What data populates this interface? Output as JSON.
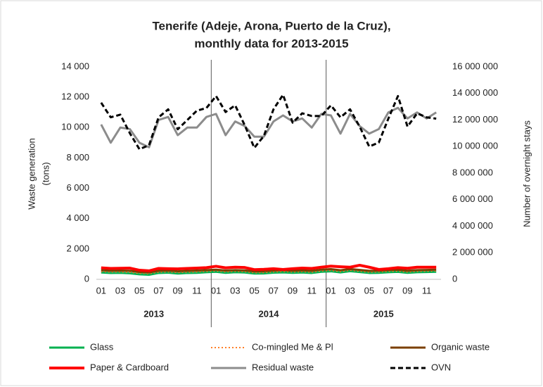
{
  "chart_data": {
    "type": "line",
    "title": [
      "Tenerife (Adeje, Arona, Puerto de la Cruz),",
      "monthly data for 2013-2015"
    ],
    "y_label": [
      "Waste generation",
      "(tons)"
    ],
    "y2_label": "Number of overnight stays",
    "categories": [
      "01",
      null,
      "03",
      null,
      "05",
      null,
      "07",
      null,
      "09",
      null,
      "11",
      null,
      "01",
      null,
      "03",
      null,
      "05",
      null,
      "07",
      null,
      "09",
      null,
      "11",
      null,
      "01",
      null,
      "03",
      null,
      "05",
      null,
      "07",
      null,
      "09",
      null,
      "11",
      null
    ],
    "year_groups": [
      "2013",
      "2014",
      "2015"
    ],
    "ylim": [
      0,
      14000
    ],
    "yticks": [
      0,
      {
        "value": 2000,
        "label": "2 000"
      },
      {
        "value": 4000,
        "label": "4 000"
      },
      {
        "value": 6000,
        "label": "6 000"
      },
      {
        "value": 8000,
        "label": "8 000"
      },
      {
        "value": 10000,
        "label": "10 000"
      },
      {
        "value": 12000,
        "label": "12 000"
      },
      {
        "value": 14000,
        "label": "14 000"
      }
    ],
    "y2lim": [
      0,
      16000000
    ],
    "y2ticks": [
      0,
      {
        "value": 2000000,
        "label": "2 000 000"
      },
      {
        "value": 4000000,
        "label": "4 000 000"
      },
      {
        "value": 6000000,
        "label": "6 000 000"
      },
      {
        "value": 8000000,
        "label": "8 000 000"
      },
      {
        "value": 10000000,
        "label": "10 000 000"
      },
      {
        "value": 12000000,
        "label": "12 000 000"
      },
      {
        "value": 14000000,
        "label": "14 000 000"
      },
      {
        "value": 16000000,
        "label": "16 000 000"
      }
    ],
    "series": [
      {
        "name": "Glass",
        "color": "#00b050",
        "width": 3,
        "values": [
          450,
          420,
          430,
          400,
          330,
          300,
          420,
          440,
          380,
          420,
          430,
          470,
          500,
          430,
          470,
          450,
          380,
          390,
          440,
          460,
          430,
          450,
          420,
          500,
          530,
          460,
          540,
          480,
          420,
          430,
          470,
          490,
          430,
          470,
          480,
          500
        ]
      },
      {
        "name": "Co-mingled Me & Pl",
        "color": "#ff7f27",
        "width": 2,
        "dash": "dotted",
        "values": [
          520,
          490,
          500,
          470,
          400,
          380,
          480,
          500,
          450,
          480,
          500,
          530,
          560,
          500,
          530,
          510,
          440,
          450,
          500,
          520,
          490,
          510,
          480,
          560,
          590,
          520,
          600,
          540,
          480,
          490,
          530,
          550,
          490,
          530,
          540,
          560
        ]
      },
      {
        "name": "Organic waste",
        "color": "#7b3f00",
        "width": 3,
        "values": [
          600,
          570,
          580,
          560,
          480,
          450,
          560,
          580,
          530,
          560,
          580,
          610,
          640,
          580,
          610,
          590,
          520,
          530,
          580,
          600,
          570,
          590,
          560,
          640,
          670,
          600,
          680,
          620,
          560,
          570,
          610,
          630,
          570,
          610,
          620,
          640
        ]
      },
      {
        "name": "Paper & Cardboard",
        "color": "#ff0000",
        "width": 4,
        "values": [
          760,
          720,
          730,
          740,
          600,
          560,
          720,
          700,
          690,
          720,
          740,
          770,
          860,
          760,
          800,
          780,
          640,
          660,
          700,
          650,
          700,
          740,
          720,
          800,
          870,
          830,
          800,
          930,
          800,
          650,
          700,
          770,
          730,
          800,
          800,
          800
        ]
      },
      {
        "name": "Residual waste",
        "color": "#8c8c8c",
        "width": 3,
        "values": [
          10200,
          9000,
          10000,
          9900,
          9000,
          8700,
          10500,
          10700,
          9500,
          10000,
          10000,
          10700,
          10900,
          9500,
          10400,
          10100,
          9400,
          9400,
          10400,
          10800,
          10400,
          10600,
          10000,
          10900,
          10800,
          9600,
          10900,
          10100,
          9600,
          9900,
          11000,
          11300,
          10600,
          11000,
          10600,
          11000
        ]
      },
      {
        "name": "OVN",
        "color": "#000000",
        "width": 3,
        "dash": "dashed",
        "axis": "y2",
        "values": [
          13300000,
          12200000,
          12400000,
          11000000,
          9800000,
          10100000,
          12200000,
          12800000,
          11300000,
          12000000,
          12700000,
          12900000,
          13800000,
          12600000,
          13100000,
          11600000,
          9900000,
          10800000,
          12800000,
          13900000,
          11800000,
          12500000,
          12300000,
          12300000,
          13100000,
          12200000,
          12800000,
          11500000,
          10000000,
          10300000,
          12100000,
          13800000,
          11500000,
          12500000,
          12200000,
          12100000
        ]
      }
    ]
  }
}
